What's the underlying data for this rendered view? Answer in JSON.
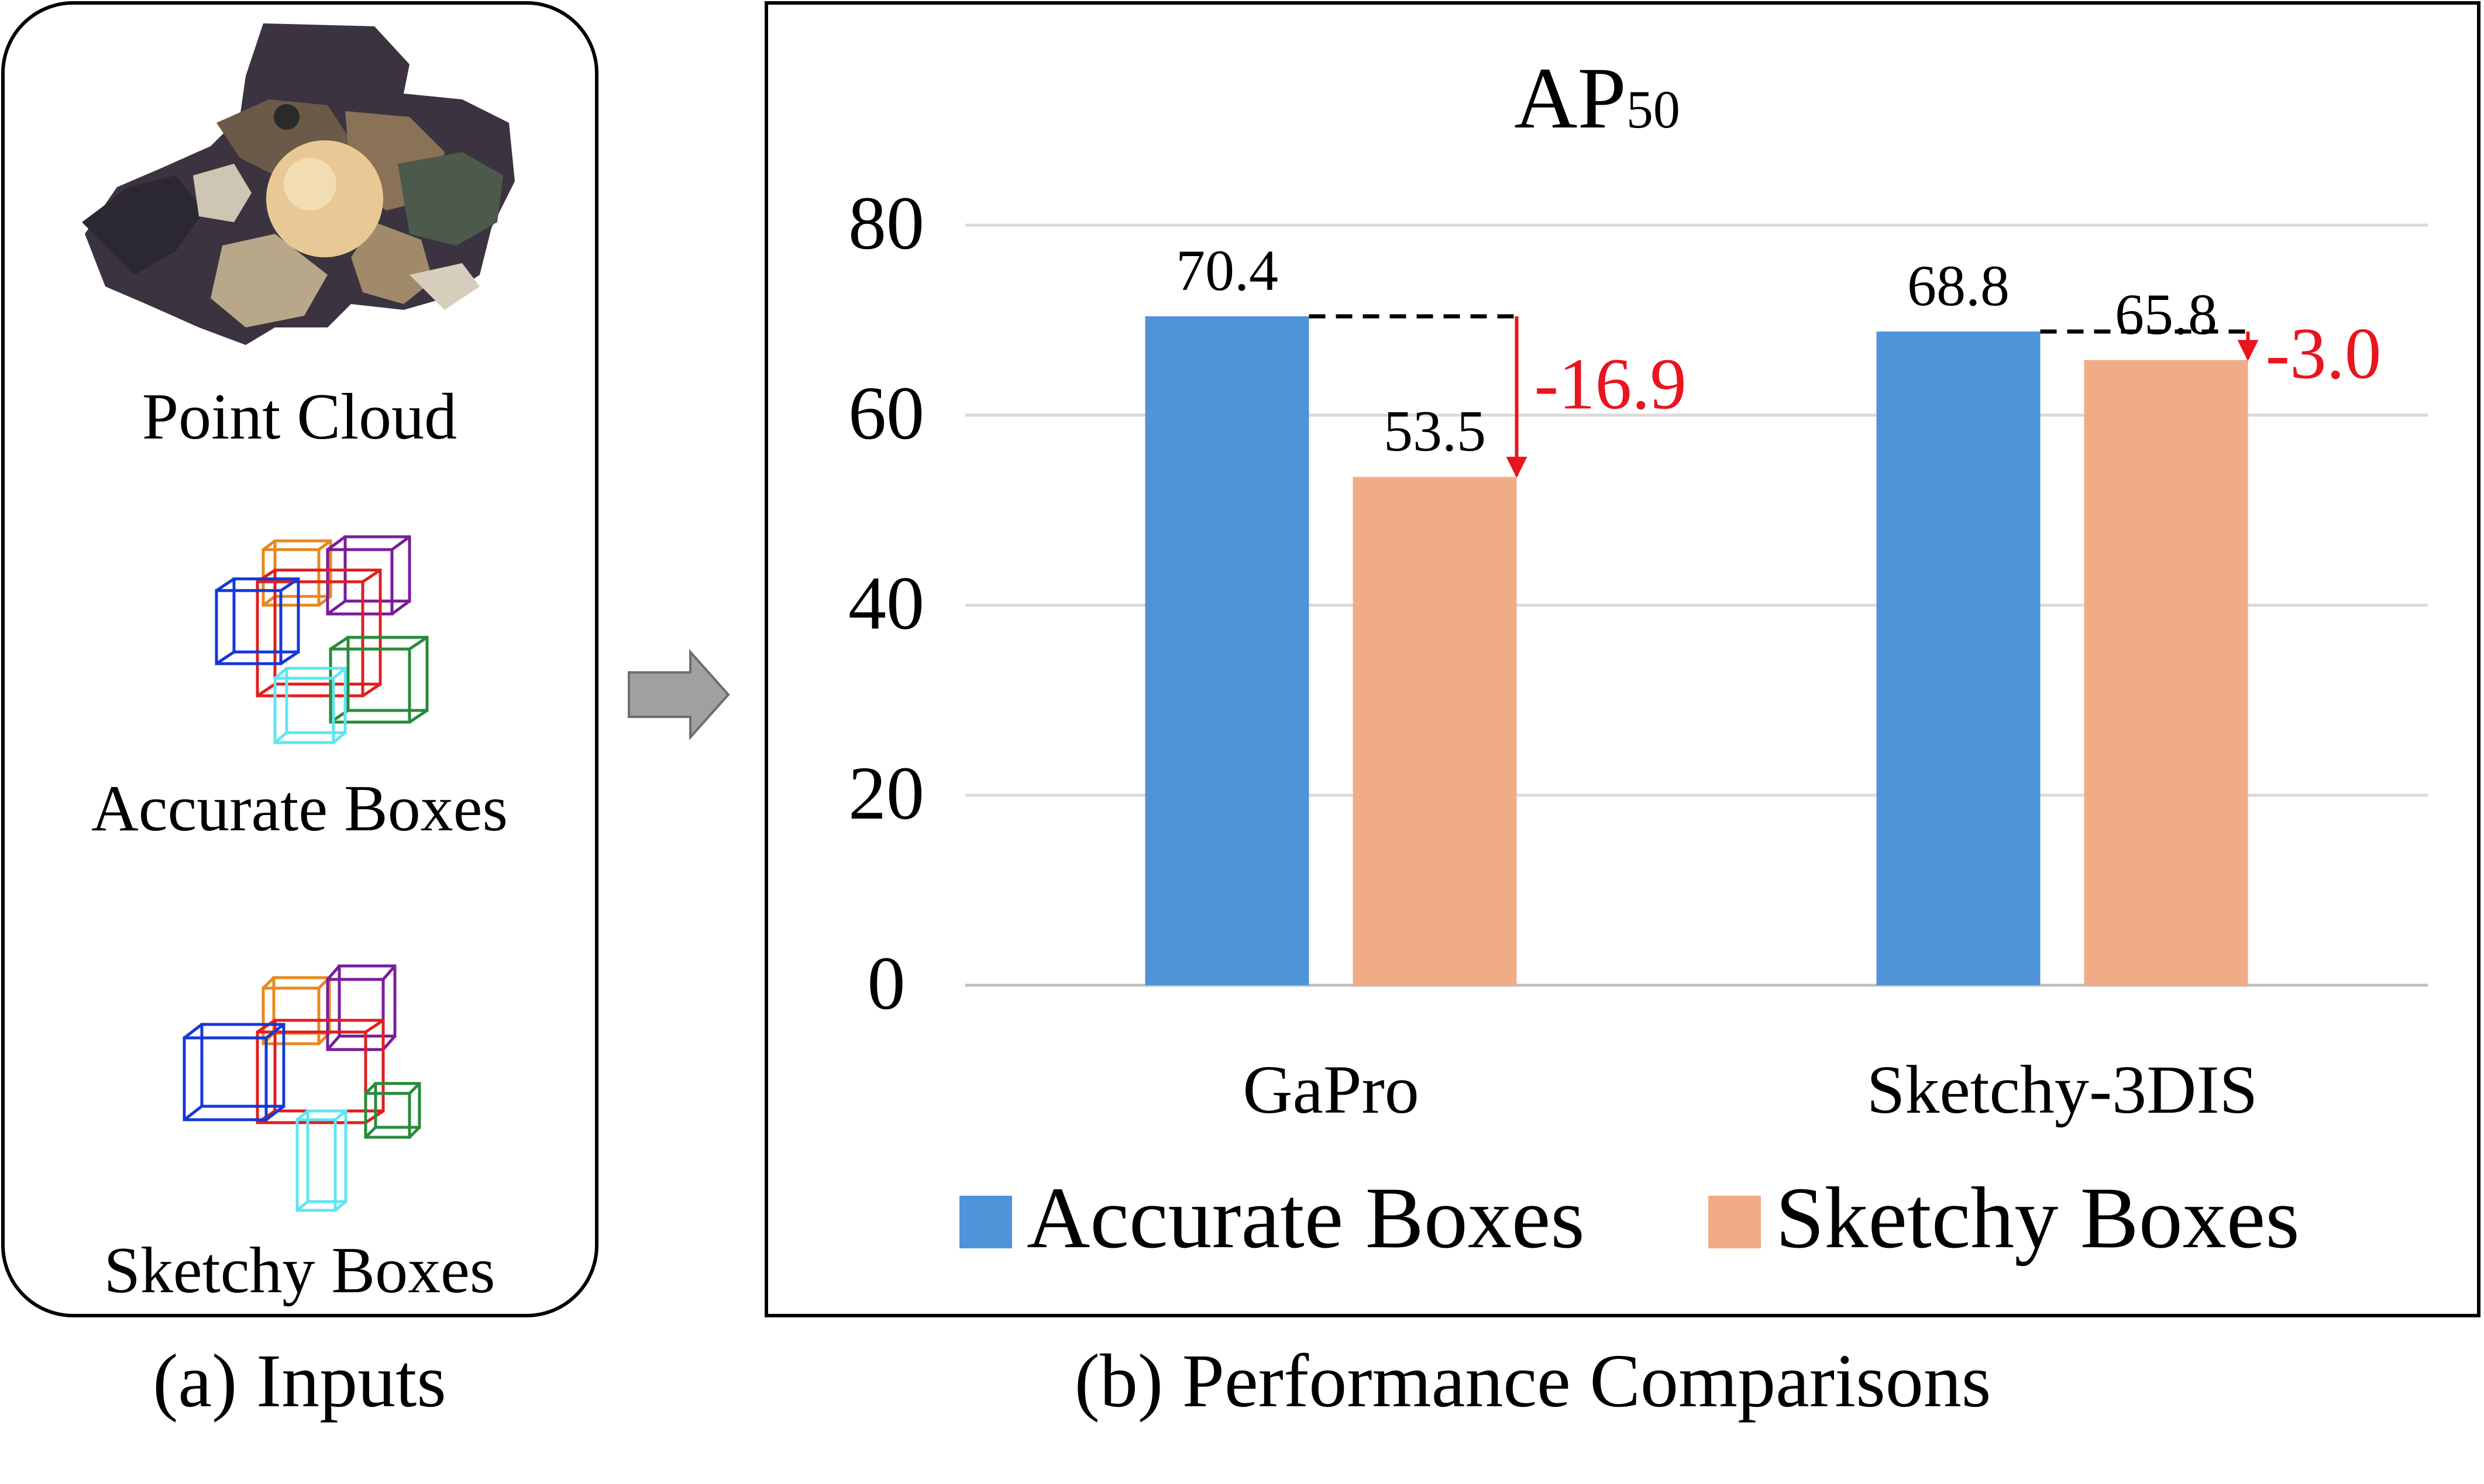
{
  "panel_a": {
    "caption": "(a) Inputs",
    "items": [
      {
        "label": "Point Cloud"
      },
      {
        "label": "Accurate Boxes"
      },
      {
        "label": "Sketchy Boxes"
      }
    ]
  },
  "panel_b": {
    "caption": "(b) Performance Comparisons"
  },
  "colors": {
    "accurate": "#4f94d8",
    "sketchy": "#f0ac87",
    "drop": "#e8141e",
    "grid": "#d9d9d9",
    "arrow": "#a0a0a0"
  },
  "chart_data": {
    "type": "bar",
    "title": "AP",
    "title_subscript": "50",
    "categories": [
      "GaPro",
      "Sketchy-3DIS"
    ],
    "series": [
      {
        "name": "Accurate Boxes",
        "values": [
          70.4,
          68.8
        ],
        "labels": [
          "70.4",
          "68.8"
        ]
      },
      {
        "name": "Sketchy Boxes",
        "values": [
          53.5,
          65.8
        ],
        "labels": [
          "53.5",
          "65.8"
        ]
      }
    ],
    "differences": [
      "-16.9",
      "-3.0"
    ],
    "ylim": [
      0,
      80
    ],
    "yticks": [
      "0",
      "20",
      "40",
      "60",
      "80"
    ],
    "grid": true,
    "legend": "bottom"
  }
}
